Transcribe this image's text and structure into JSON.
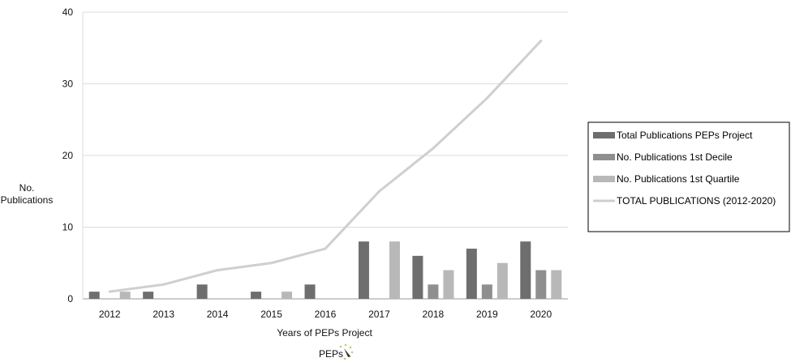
{
  "chart_data": {
    "type": "bar",
    "categories": [
      "2012",
      "2013",
      "2014",
      "2015",
      "2016",
      "2017",
      "2018",
      "2019",
      "2020"
    ],
    "series": [
      {
        "name": "Total Publications PEPs Project",
        "kind": "bar",
        "color": "#6e6e6e",
        "values": [
          1,
          1,
          2,
          1,
          2,
          8,
          6,
          7,
          8
        ]
      },
      {
        "name": "No. Publications 1st Decile",
        "kind": "bar",
        "color": "#8f8f8f",
        "values": [
          0,
          0,
          0,
          0,
          0,
          0,
          2,
          2,
          4
        ]
      },
      {
        "name": "No. Publications 1st Quartile",
        "kind": "bar",
        "color": "#b8b8b8",
        "values": [
          1,
          0,
          0,
          1,
          0,
          8,
          4,
          5,
          4
        ]
      },
      {
        "name": "TOTAL PUBLICATIONS (2012-2020)",
        "kind": "line",
        "color": "#cfcfcf",
        "values": [
          1,
          2,
          4,
          5,
          7,
          15,
          21,
          28,
          36
        ]
      }
    ],
    "xlabel": "Years of PEPs Project",
    "ylabel_line1": "No.",
    "ylabel_line2": "Publications",
    "ylim": [
      0,
      40
    ],
    "yticks": [
      0,
      10,
      20,
      30,
      40
    ],
    "grid": "horizontal",
    "legend_position": "right",
    "caption": "PEPs"
  }
}
